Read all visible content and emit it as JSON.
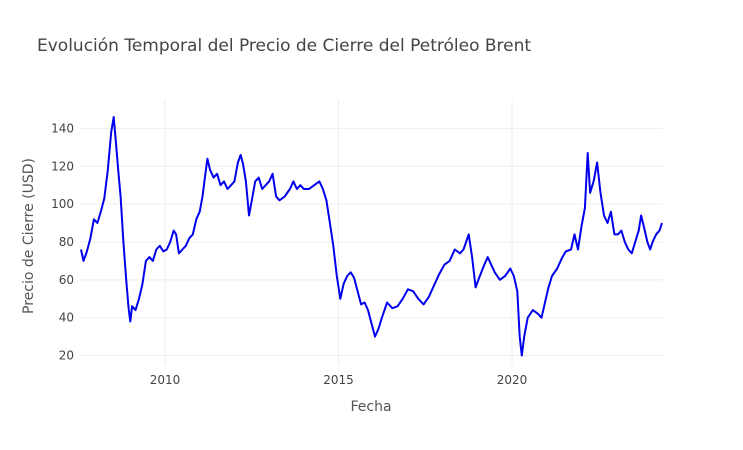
{
  "chart_data": {
    "type": "line",
    "title": "Evolución Temporal del Precio de Cierre del Petróleo Brent",
    "xlabel": "Fecha",
    "ylabel": "Precio de Cierre (USD)",
    "xlim": [
      2007.55,
      2024.35
    ],
    "ylim": [
      15,
      155
    ],
    "x_ticks": [
      {
        "value": 2010,
        "label": "2010"
      },
      {
        "value": 2015,
        "label": "2015"
      },
      {
        "value": 2020,
        "label": "2020"
      }
    ],
    "y_ticks": [
      {
        "value": 20,
        "label": "20"
      },
      {
        "value": 40,
        "label": "40"
      },
      {
        "value": 60,
        "label": "60"
      },
      {
        "value": 80,
        "label": "80"
      },
      {
        "value": 100,
        "label": "100"
      },
      {
        "value": 120,
        "label": "120"
      },
      {
        "value": 140,
        "label": "140"
      }
    ],
    "grid": true,
    "series": [
      {
        "color": "#0000ee",
        "points": [
          [
            2007.58,
            76
          ],
          [
            2007.65,
            70
          ],
          [
            2007.75,
            75
          ],
          [
            2007.85,
            82
          ],
          [
            2007.95,
            92
          ],
          [
            2008.05,
            90
          ],
          [
            2008.15,
            96
          ],
          [
            2008.25,
            103
          ],
          [
            2008.35,
            118
          ],
          [
            2008.45,
            138
          ],
          [
            2008.52,
            146
          ],
          [
            2008.58,
            134
          ],
          [
            2008.65,
            118
          ],
          [
            2008.72,
            104
          ],
          [
            2008.8,
            80
          ],
          [
            2008.88,
            60
          ],
          [
            2008.95,
            45
          ],
          [
            2009.0,
            38
          ],
          [
            2009.05,
            46
          ],
          [
            2009.15,
            44
          ],
          [
            2009.25,
            50
          ],
          [
            2009.35,
            58
          ],
          [
            2009.45,
            70
          ],
          [
            2009.55,
            72
          ],
          [
            2009.65,
            70
          ],
          [
            2009.75,
            76
          ],
          [
            2009.85,
            78
          ],
          [
            2009.95,
            75
          ],
          [
            2010.05,
            76
          ],
          [
            2010.15,
            80
          ],
          [
            2010.25,
            86
          ],
          [
            2010.32,
            84
          ],
          [
            2010.4,
            74
          ],
          [
            2010.5,
            76
          ],
          [
            2010.6,
            78
          ],
          [
            2010.7,
            82
          ],
          [
            2010.8,
            84
          ],
          [
            2010.9,
            92
          ],
          [
            2011.0,
            96
          ],
          [
            2011.08,
            104
          ],
          [
            2011.15,
            114
          ],
          [
            2011.22,
            124
          ],
          [
            2011.3,
            118
          ],
          [
            2011.4,
            114
          ],
          [
            2011.5,
            116
          ],
          [
            2011.6,
            110
          ],
          [
            2011.7,
            112
          ],
          [
            2011.8,
            108
          ],
          [
            2011.9,
            110
          ],
          [
            2012.0,
            112
          ],
          [
            2012.1,
            122
          ],
          [
            2012.18,
            126
          ],
          [
            2012.25,
            121
          ],
          [
            2012.33,
            112
          ],
          [
            2012.42,
            94
          ],
          [
            2012.5,
            102
          ],
          [
            2012.6,
            112
          ],
          [
            2012.7,
            114
          ],
          [
            2012.8,
            108
          ],
          [
            2012.9,
            110
          ],
          [
            2013.0,
            112
          ],
          [
            2013.1,
            116
          ],
          [
            2013.2,
            104
          ],
          [
            2013.3,
            102
          ],
          [
            2013.45,
            104
          ],
          [
            2013.6,
            108
          ],
          [
            2013.7,
            112
          ],
          [
            2013.8,
            108
          ],
          [
            2013.9,
            110
          ],
          [
            2014.0,
            108
          ],
          [
            2014.15,
            108
          ],
          [
            2014.3,
            110
          ],
          [
            2014.45,
            112
          ],
          [
            2014.55,
            108
          ],
          [
            2014.65,
            102
          ],
          [
            2014.75,
            90
          ],
          [
            2014.85,
            78
          ],
          [
            2014.95,
            62
          ],
          [
            2015.05,
            50
          ],
          [
            2015.15,
            58
          ],
          [
            2015.25,
            62
          ],
          [
            2015.35,
            64
          ],
          [
            2015.45,
            61
          ],
          [
            2015.55,
            54
          ],
          [
            2015.65,
            47
          ],
          [
            2015.75,
            48
          ],
          [
            2015.85,
            44
          ],
          [
            2015.95,
            37
          ],
          [
            2016.05,
            30
          ],
          [
            2016.15,
            34
          ],
          [
            2016.25,
            40
          ],
          [
            2016.4,
            48
          ],
          [
            2016.55,
            45
          ],
          [
            2016.7,
            46
          ],
          [
            2016.85,
            50
          ],
          [
            2017.0,
            55
          ],
          [
            2017.15,
            54
          ],
          [
            2017.3,
            50
          ],
          [
            2017.45,
            47
          ],
          [
            2017.6,
            51
          ],
          [
            2017.75,
            57
          ],
          [
            2017.9,
            63
          ],
          [
            2018.05,
            68
          ],
          [
            2018.2,
            70
          ],
          [
            2018.35,
            76
          ],
          [
            2018.5,
            74
          ],
          [
            2018.6,
            76
          ],
          [
            2018.75,
            84
          ],
          [
            2018.85,
            72
          ],
          [
            2018.95,
            56
          ],
          [
            2019.05,
            61
          ],
          [
            2019.2,
            68
          ],
          [
            2019.3,
            72
          ],
          [
            2019.4,
            68
          ],
          [
            2019.5,
            64
          ],
          [
            2019.65,
            60
          ],
          [
            2019.8,
            62
          ],
          [
            2019.95,
            66
          ],
          [
            2020.05,
            62
          ],
          [
            2020.15,
            54
          ],
          [
            2020.22,
            30
          ],
          [
            2020.28,
            20
          ],
          [
            2020.35,
            30
          ],
          [
            2020.45,
            40
          ],
          [
            2020.6,
            44
          ],
          [
            2020.75,
            42
          ],
          [
            2020.85,
            40
          ],
          [
            2020.95,
            48
          ],
          [
            2021.05,
            56
          ],
          [
            2021.15,
            62
          ],
          [
            2021.3,
            66
          ],
          [
            2021.45,
            72
          ],
          [
            2021.55,
            75
          ],
          [
            2021.7,
            76
          ],
          [
            2021.8,
            84
          ],
          [
            2021.9,
            76
          ],
          [
            2022.0,
            88
          ],
          [
            2022.1,
            98
          ],
          [
            2022.18,
            127
          ],
          [
            2022.25,
            106
          ],
          [
            2022.35,
            112
          ],
          [
            2022.45,
            122
          ],
          [
            2022.55,
            106
          ],
          [
            2022.65,
            94
          ],
          [
            2022.75,
            90
          ],
          [
            2022.85,
            96
          ],
          [
            2022.95,
            84
          ],
          [
            2023.05,
            84
          ],
          [
            2023.15,
            86
          ],
          [
            2023.25,
            80
          ],
          [
            2023.35,
            76
          ],
          [
            2023.45,
            74
          ],
          [
            2023.55,
            80
          ],
          [
            2023.65,
            86
          ],
          [
            2023.72,
            94
          ],
          [
            2023.8,
            88
          ],
          [
            2023.9,
            80
          ],
          [
            2023.98,
            76
          ],
          [
            2024.05,
            80
          ],
          [
            2024.15,
            84
          ],
          [
            2024.25,
            86
          ],
          [
            2024.32,
            90
          ]
        ]
      }
    ]
  }
}
